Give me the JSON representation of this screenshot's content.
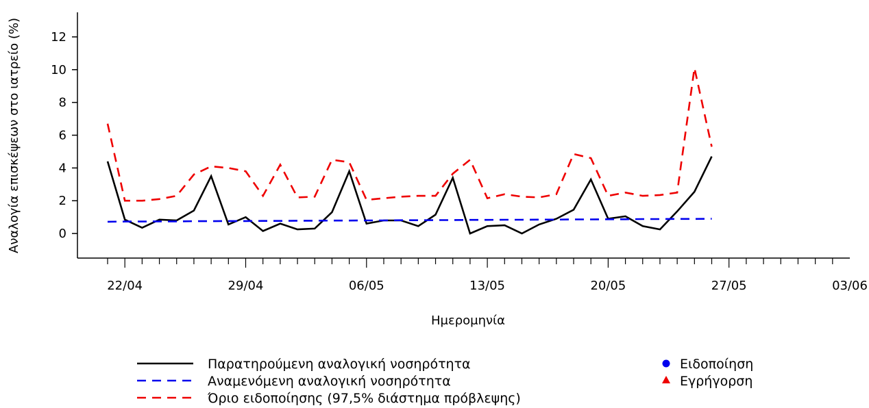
{
  "chart_data": {
    "type": "line",
    "xlabel": "Ημερομηνία",
    "ylabel": "Αναλογία επισκέψεων στο ιατρείο (%)",
    "ylim": [
      -1.5,
      13.5
    ],
    "yticks": [
      0,
      2,
      4,
      6,
      8,
      10,
      12
    ],
    "x_range": [
      "2018-04-20",
      "2018-06-03"
    ],
    "x_minor_ticks_days": 1,
    "x_major_ticks": [
      {
        "date": "2018-04-22",
        "label": "22/04"
      },
      {
        "date": "2018-04-29",
        "label": "29/04"
      },
      {
        "date": "2018-05-06",
        "label": "06/05"
      },
      {
        "date": "2018-05-13",
        "label": "13/05"
      },
      {
        "date": "2018-05-20",
        "label": "20/05"
      },
      {
        "date": "2018-05-27",
        "label": "27/05"
      },
      {
        "date": "2018-06-03",
        "label": "03/06"
      }
    ],
    "x": [
      "2018-04-21",
      "2018-04-22",
      "2018-04-23",
      "2018-04-24",
      "2018-04-25",
      "2018-04-26",
      "2018-04-27",
      "2018-04-28",
      "2018-04-29",
      "2018-04-30",
      "2018-05-01",
      "2018-05-02",
      "2018-05-03",
      "2018-05-04",
      "2018-05-05",
      "2018-05-06",
      "2018-05-07",
      "2018-05-08",
      "2018-05-09",
      "2018-05-10",
      "2018-05-11",
      "2018-05-12",
      "2018-05-13",
      "2018-05-14",
      "2018-05-15",
      "2018-05-16",
      "2018-05-17",
      "2018-05-18",
      "2018-05-19",
      "2018-05-20",
      "2018-05-21",
      "2018-05-22",
      "2018-05-23",
      "2018-05-24",
      "2018-05-25",
      "2018-05-26"
    ],
    "series": [
      {
        "name": "Παρατηρούμενη αναλογική νοσηρότητα",
        "color": "#000000",
        "dash": "solid",
        "values": [
          4.4,
          0.85,
          0.35,
          0.85,
          0.8,
          1.4,
          3.5,
          0.55,
          1.0,
          0.15,
          0.6,
          0.25,
          0.3,
          1.3,
          3.8,
          0.6,
          0.8,
          0.8,
          0.45,
          1.15,
          3.4,
          0.0,
          0.45,
          0.5,
          0.0,
          0.55,
          0.9,
          1.45,
          3.3,
          0.9,
          1.05,
          0.45,
          0.25,
          1.35,
          2.55,
          4.7
        ]
      },
      {
        "name": "Αναμενόμενη αναλογική νοσηρότητα",
        "color": "#0000ee",
        "dash": "dashed",
        "values": [
          0.72,
          0.73,
          0.73,
          0.74,
          0.74,
          0.75,
          0.75,
          0.76,
          0.76,
          0.77,
          0.77,
          0.78,
          0.78,
          0.79,
          0.79,
          0.8,
          0.8,
          0.81,
          0.81,
          0.82,
          0.82,
          0.83,
          0.83,
          0.84,
          0.84,
          0.85,
          0.85,
          0.86,
          0.86,
          0.87,
          0.87,
          0.88,
          0.88,
          0.89,
          0.89,
          0.9
        ]
      },
      {
        "name": "Όριο ειδοποίησης (97,5% διάστημα πρόβλεψης)",
        "color": "#ee0000",
        "dash": "dashed",
        "values": [
          6.7,
          2.0,
          2.0,
          2.1,
          2.3,
          3.6,
          4.1,
          4.0,
          3.8,
          2.3,
          4.2,
          2.2,
          2.25,
          4.5,
          4.35,
          2.05,
          2.15,
          2.25,
          2.3,
          2.3,
          3.65,
          4.5,
          2.15,
          2.4,
          2.25,
          2.2,
          2.4,
          4.85,
          4.6,
          2.3,
          2.5,
          2.3,
          2.35,
          2.5,
          10.1,
          5.3
        ]
      }
    ],
    "legend": {
      "placement": "bottom",
      "lines": [
        "Παρατηρούμενη αναλογική νοσηρότητα",
        "Αναμενόμενη αναλογική νοσηρότητα",
        "Όριο ειδοποίησης (97,5% διάστημα πρόβλεψης)"
      ],
      "markers": [
        {
          "label": "Ειδοποίηση",
          "shape": "circle",
          "color": "#0000ee"
        },
        {
          "label": "Εγρήγορση",
          "shape": "triangle",
          "color": "#ee0000"
        }
      ]
    },
    "grid": false
  }
}
